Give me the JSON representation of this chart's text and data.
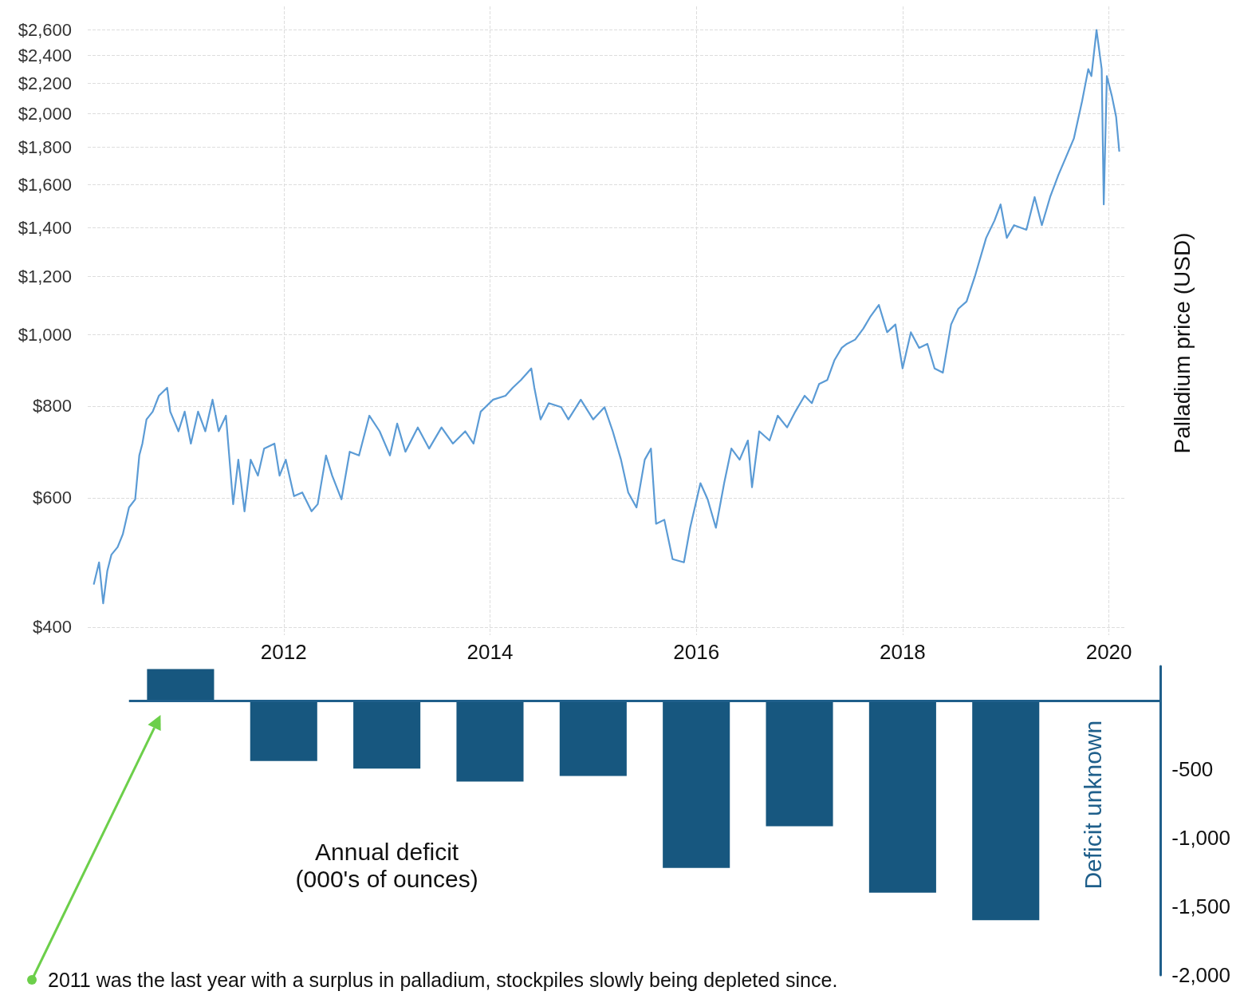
{
  "chart_data": [
    {
      "type": "line",
      "ylabel": "Palladium price (USD)",
      "x": [
        2010.16,
        2010.21,
        2010.25,
        2010.29,
        2010.33,
        2010.39,
        2010.44,
        2010.5,
        2010.56,
        2010.6,
        2010.63,
        2010.67,
        2010.73,
        2010.79,
        2010.87,
        2010.9,
        2010.98,
        2011.04,
        2011.1,
        2011.17,
        2011.24,
        2011.31,
        2011.37,
        2011.44,
        2011.51,
        2011.56,
        2011.62,
        2011.68,
        2011.75,
        2011.81,
        2011.91,
        2011.96,
        2012.02,
        2012.1,
        2012.18,
        2012.27,
        2012.33,
        2012.41,
        2012.47,
        2012.56,
        2012.64,
        2012.73,
        2012.83,
        2012.93,
        2013.03,
        2013.1,
        2013.18,
        2013.3,
        2013.41,
        2013.53,
        2013.64,
        2013.76,
        2013.84,
        2013.91,
        2014.03,
        2014.15,
        2014.22,
        2014.3,
        2014.4,
        2014.43,
        2014.49,
        2014.57,
        2014.69,
        2014.76,
        2014.88,
        2015.0,
        2015.11,
        2015.19,
        2015.27,
        2015.34,
        2015.42,
        2015.5,
        2015.56,
        2015.61,
        2015.69,
        2015.77,
        2015.88,
        2015.94,
        2016.04,
        2016.11,
        2016.19,
        2016.27,
        2016.34,
        2016.42,
        2016.5,
        2016.54,
        2016.61,
        2016.71,
        2016.79,
        2016.88,
        2016.96,
        2017.05,
        2017.12,
        2017.19,
        2017.27,
        2017.34,
        2017.41,
        2017.46,
        2017.54,
        2017.62,
        2017.69,
        2017.77,
        2017.85,
        2017.93,
        2018.0,
        2018.08,
        2018.16,
        2018.24,
        2018.31,
        2018.39,
        2018.47,
        2018.54,
        2018.62,
        2018.7,
        2018.81,
        2018.89,
        2018.95,
        2019.01,
        2019.08,
        2019.2,
        2019.28,
        2019.35,
        2019.43,
        2019.51,
        2019.58,
        2019.66,
        2019.74,
        2019.8,
        2019.83,
        2019.88,
        2019.93,
        2019.95,
        2019.98,
        2020.03,
        2020.07,
        2020.1
      ],
      "series": [
        {
          "color": "#5b9bd5",
          "values": [
            458,
            490,
            431,
            477,
            502,
            514,
            535,
            582,
            597,
            685,
            711,
            767,
            786,
            826,
            847,
            786,
            739,
            786,
            711,
            786,
            739,
            816,
            739,
            776,
            588,
            676,
            575,
            676,
            643,
            700,
            711,
            643,
            676,
            603,
            610,
            575,
            588,
            685,
            643,
            597,
            693,
            685,
            776,
            739,
            685,
            757,
            693,
            748,
            700,
            748,
            711,
            739,
            711,
            786,
            816,
            826,
            847,
            868,
            900,
            847,
            767,
            807,
            797,
            767,
            816,
            767,
            797,
            739,
            676,
            610,
            582,
            676,
            700,
            553,
            560,
            495,
            490,
            546,
            628,
            597,
            546,
            628,
            700,
            676,
            718,
            620,
            739,
            718,
            776,
            748,
            786,
            826,
            807,
            857,
            868,
            924,
            960,
            972,
            985,
            1020,
            1060,
            1098,
            1008,
            1033,
            900,
            1008,
            960,
            972,
            900,
            888,
            1033,
            1085,
            1110,
            1200,
            1355,
            1430,
            1505,
            1355,
            1410,
            1390,
            1540,
            1410,
            1540,
            1650,
            1740,
            1850,
            2080,
            2300,
            2250,
            2600,
            2300,
            1505,
            2250,
            2110,
            1980,
            1780
          ]
        }
      ],
      "xlim": [
        2010.1,
        2020.15
      ],
      "xticks": [
        2012,
        2014,
        2016,
        2018,
        2020
      ],
      "ylim": [
        390,
        2800
      ],
      "yticks": [
        {
          "value": 400,
          "label": "$400"
        },
        {
          "value": 600,
          "label": "$600"
        },
        {
          "value": 800,
          "label": "$800"
        },
        {
          "value": 1000,
          "label": "$1,000"
        },
        {
          "value": 1200,
          "label": "$1,200"
        },
        {
          "value": 1400,
          "label": "$1,400"
        },
        {
          "value": 1600,
          "label": "$1,600"
        },
        {
          "value": 1800,
          "label": "$1,800"
        },
        {
          "value": 2000,
          "label": "$2,000"
        },
        {
          "value": 2200,
          "label": "$2,200"
        },
        {
          "value": 2400,
          "label": "$2,400"
        },
        {
          "value": 2600,
          "label": "$2,600"
        }
      ],
      "log": "y",
      "grid": true,
      "marker": "none",
      "line_style": "solid"
    },
    {
      "type": "bar",
      "categories": [
        null,
        null,
        null,
        null,
        null,
        null,
        null,
        null,
        null,
        null
      ],
      "series": [
        {
          "color": "#17577f",
          "values": [
            230,
            -440,
            -495,
            -590,
            -550,
            -1220,
            -915,
            -1400,
            -1600,
            null
          ]
        }
      ],
      "ylim": [
        -2000,
        250
      ],
      "yticks": [
        {
          "value": 0,
          "label": null
        },
        {
          "value": -500,
          "label": "-500"
        },
        {
          "value": -1000,
          "label": "-1,000"
        },
        {
          "value": -1500,
          "label": "-1,500"
        },
        {
          "value": -2000,
          "label": "-2,000"
        }
      ],
      "tick_labels": "y",
      "grid": false,
      "ref_lines": [
        {
          "axis": "y",
          "value": 0,
          "color": "#1f5f8b",
          "line_style": "solid"
        }
      ],
      "annotations": [
        "Annual deficit\n(000's of ounces)",
        "Deficit unknown",
        "2011 was the last year with a surplus in palladium, stockpiles slowly being depleted since."
      ]
    }
  ]
}
